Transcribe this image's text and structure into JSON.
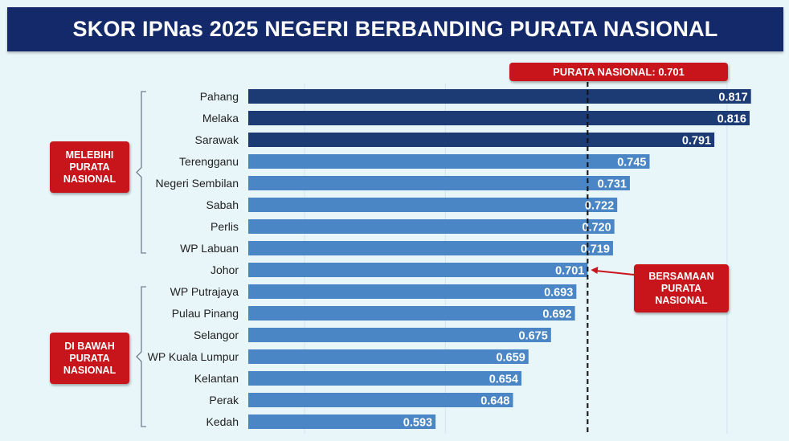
{
  "title": "SKOR IPNas 2025 NEGERI BERBANDING PURATA NASIONAL",
  "average_label": "PURATA NASIONAL: 0.701",
  "group_above_label": "MELEBIHI\nPURATA\nNASIONAL",
  "group_below_label": "DI BAWAH\nPURATA\nNASIONAL",
  "equal_label": "BERSAMAAN\nPURATA\nNASIONAL",
  "colors": {
    "title_bg": "#13296a",
    "top_bar": "#1c3a73",
    "bar": "#4a86c5",
    "accent_red": "#c8151b",
    "background": "#e9f6f9"
  },
  "chart_data": {
    "type": "bar",
    "orientation": "horizontal",
    "title": "SKOR IPNas 2025 NEGERI BERBANDING PURATA NASIONAL",
    "categories": [
      "Pahang",
      "Melaka",
      "Sarawak",
      "Terengganu",
      "Negeri Sembilan",
      "Sabah",
      "Perlis",
      "WP Labuan",
      "Johor",
      "WP Putrajaya",
      "Pulau Pinang",
      "Selangor",
      "WP Kuala Lumpur",
      "Kelantan",
      "Perak",
      "Kedah"
    ],
    "values": [
      0.817,
      0.816,
      0.791,
      0.745,
      0.731,
      0.722,
      0.72,
      0.719,
      0.701,
      0.693,
      0.692,
      0.675,
      0.659,
      0.654,
      0.648,
      0.593
    ],
    "value_labels": [
      "0.817",
      "0.816",
      "0.791",
      "0.745",
      "0.731",
      "0.722",
      "0.720",
      "0.719",
      "0.701",
      "0.693",
      "0.692",
      "0.675",
      "0.659",
      "0.654",
      "0.648",
      "0.593"
    ],
    "reference_line": 0.701,
    "highlighted_top_count": 3,
    "xlim": [
      0.46,
      0.84
    ],
    "grid": true,
    "xlabel": "",
    "ylabel": ""
  }
}
